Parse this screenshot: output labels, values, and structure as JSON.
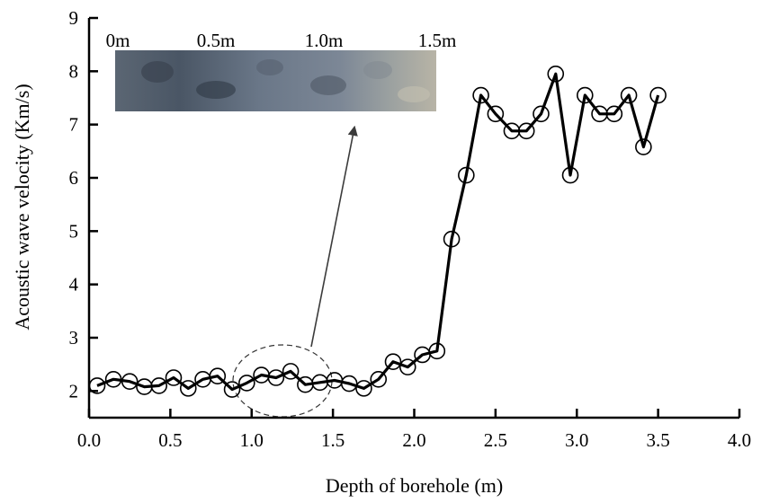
{
  "chart_data": {
    "type": "line",
    "title": "",
    "xlabel": "Depth of borehole (m)",
    "ylabel": "Acoustic wave velocity (Km/s)",
    "xlim": [
      0.0,
      4.0
    ],
    "ylim": [
      1.5,
      9.0
    ],
    "x_ticks": [
      0.0,
      0.5,
      1.0,
      1.5,
      2.0,
      2.5,
      3.0,
      3.5,
      4.0
    ],
    "x_tick_labels": [
      "0.0",
      "0.5",
      "1.0",
      "1.5",
      "2.0",
      "2.5",
      "3.0",
      "3.5",
      "4.0"
    ],
    "y_ticks": [
      2,
      3,
      4,
      5,
      6,
      7,
      8,
      9
    ],
    "y_tick_labels": [
      "2",
      "3",
      "4",
      "5",
      "6",
      "7",
      "8",
      "9"
    ],
    "grid": false,
    "marker": "open-circle",
    "series": [
      {
        "name": "",
        "color": "#000000",
        "x": [
          0.05,
          0.15,
          0.25,
          0.34,
          0.43,
          0.52,
          0.61,
          0.7,
          0.79,
          0.88,
          0.97,
          1.06,
          1.15,
          1.24,
          1.33,
          1.42,
          1.51,
          1.6,
          1.69,
          1.78,
          1.87,
          1.96,
          2.05,
          2.14,
          2.23,
          2.32,
          2.41,
          2.5,
          2.6,
          2.69,
          2.78,
          2.87,
          2.96,
          3.05,
          3.14,
          3.23,
          3.32,
          3.41,
          3.5
        ],
        "y": [
          2.1,
          2.22,
          2.18,
          2.08,
          2.1,
          2.25,
          2.05,
          2.22,
          2.28,
          2.03,
          2.15,
          2.3,
          2.25,
          2.37,
          2.12,
          2.16,
          2.2,
          2.14,
          2.05,
          2.22,
          2.55,
          2.45,
          2.68,
          2.75,
          4.85,
          6.05,
          7.55,
          7.2,
          6.88,
          6.88,
          7.2,
          7.95,
          6.05,
          7.55,
          7.2,
          7.2,
          7.55,
          6.58,
          7.55
        ]
      }
    ],
    "annotations": {
      "inset_photo_scale_labels": [
        "0m",
        "0.5m",
        "1.0m",
        "1.5m"
      ],
      "callout": "dashed ellipse around 1.0–1.6 m region with arrow pointing to borehole photo"
    }
  }
}
